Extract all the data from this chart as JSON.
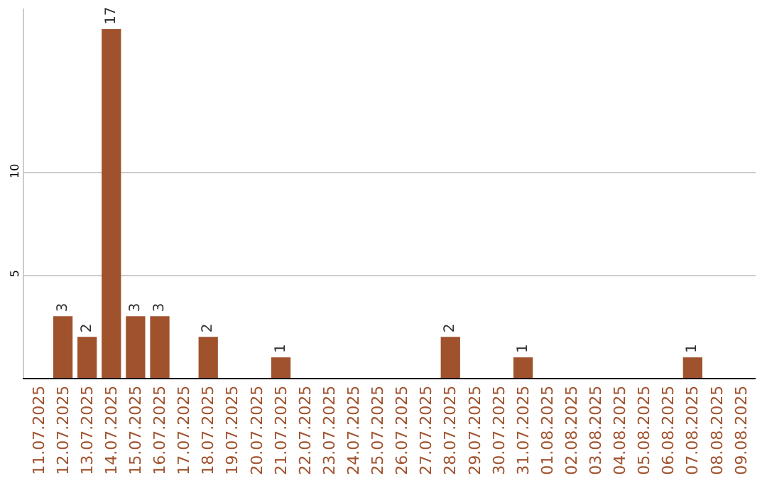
{
  "chart_data": {
    "type": "bar",
    "categories": [
      "11.07.2025",
      "12.07.2025",
      "13.07.2025",
      "14.07.2025",
      "15.07.2025",
      "16.07.2025",
      "17.07.2025",
      "18.07.2025",
      "19.07.2025",
      "20.07.2025",
      "21.07.2025",
      "22.07.2025",
      "23.07.2025",
      "24.07.2025",
      "25.07.2025",
      "26.07.2025",
      "27.07.2025",
      "28.07.2025",
      "29.07.2025",
      "30.07.2025",
      "31.07.2025",
      "01.08.2025",
      "02.08.2025",
      "03.08.2025",
      "04.08.2025",
      "05.08.2025",
      "06.08.2025",
      "07.08.2025",
      "08.08.2025",
      "09.08.2025"
    ],
    "values": [
      0,
      3,
      2,
      17,
      3,
      3,
      0,
      2,
      0,
      0,
      1,
      0,
      0,
      0,
      0,
      0,
      0,
      2,
      0,
      0,
      1,
      0,
      0,
      0,
      0,
      0,
      0,
      1,
      0,
      0
    ],
    "value_labels": [
      null,
      "3",
      "2",
      "17",
      "3",
      "3",
      null,
      "2",
      null,
      null,
      "1",
      null,
      null,
      null,
      null,
      null,
      null,
      "2",
      null,
      null,
      "1",
      null,
      null,
      null,
      null,
      null,
      null,
      "1",
      null,
      null
    ],
    "color": "#a0522d",
    "ylim": [
      0,
      18
    ],
    "yticks": [
      5,
      10
    ],
    "grid": "y"
  }
}
